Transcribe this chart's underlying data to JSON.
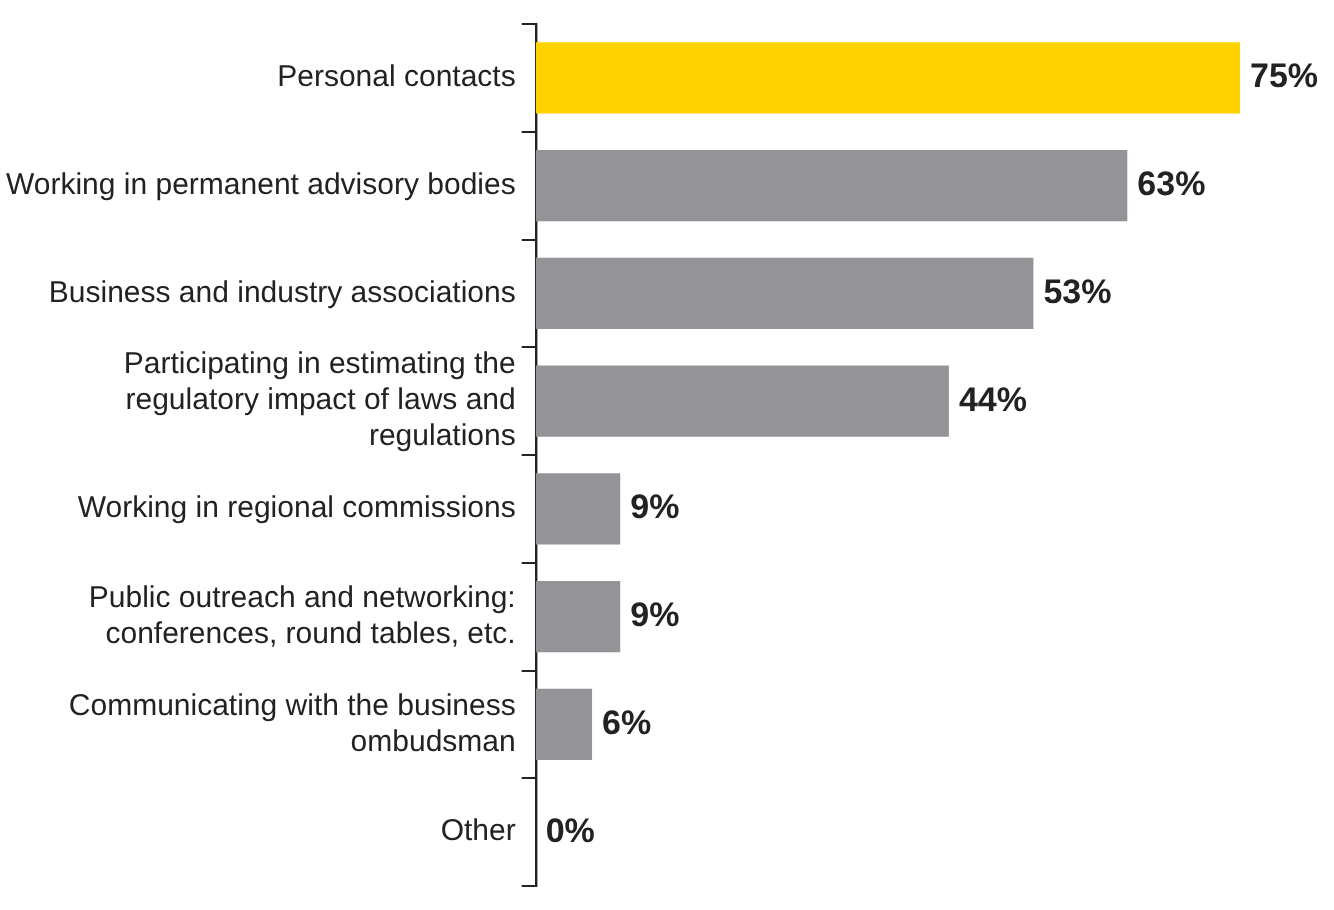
{
  "chart_data": {
    "type": "bar",
    "orientation": "horizontal",
    "categories": [
      "Personal contacts",
      "Working in permanent advisory bodies",
      "Business and industry associations",
      "Participating in estimating the regulatory impact of laws and regulations",
      "Working in regional commissions",
      "Public outreach and networking: conferences, round tables, etc.",
      "Communicating with the business ombudsman",
      "Other"
    ],
    "values": [
      75,
      63,
      53,
      44,
      9,
      9,
      6,
      0
    ],
    "colors": [
      "#ffd200",
      "#949498",
      "#949498",
      "#949498",
      "#949498",
      "#949498",
      "#949498",
      "#949498"
    ],
    "value_labels": [
      "75%",
      "63%",
      "53%",
      "44%",
      "9%",
      "9%",
      "6%",
      "0%"
    ],
    "legend": false
  }
}
